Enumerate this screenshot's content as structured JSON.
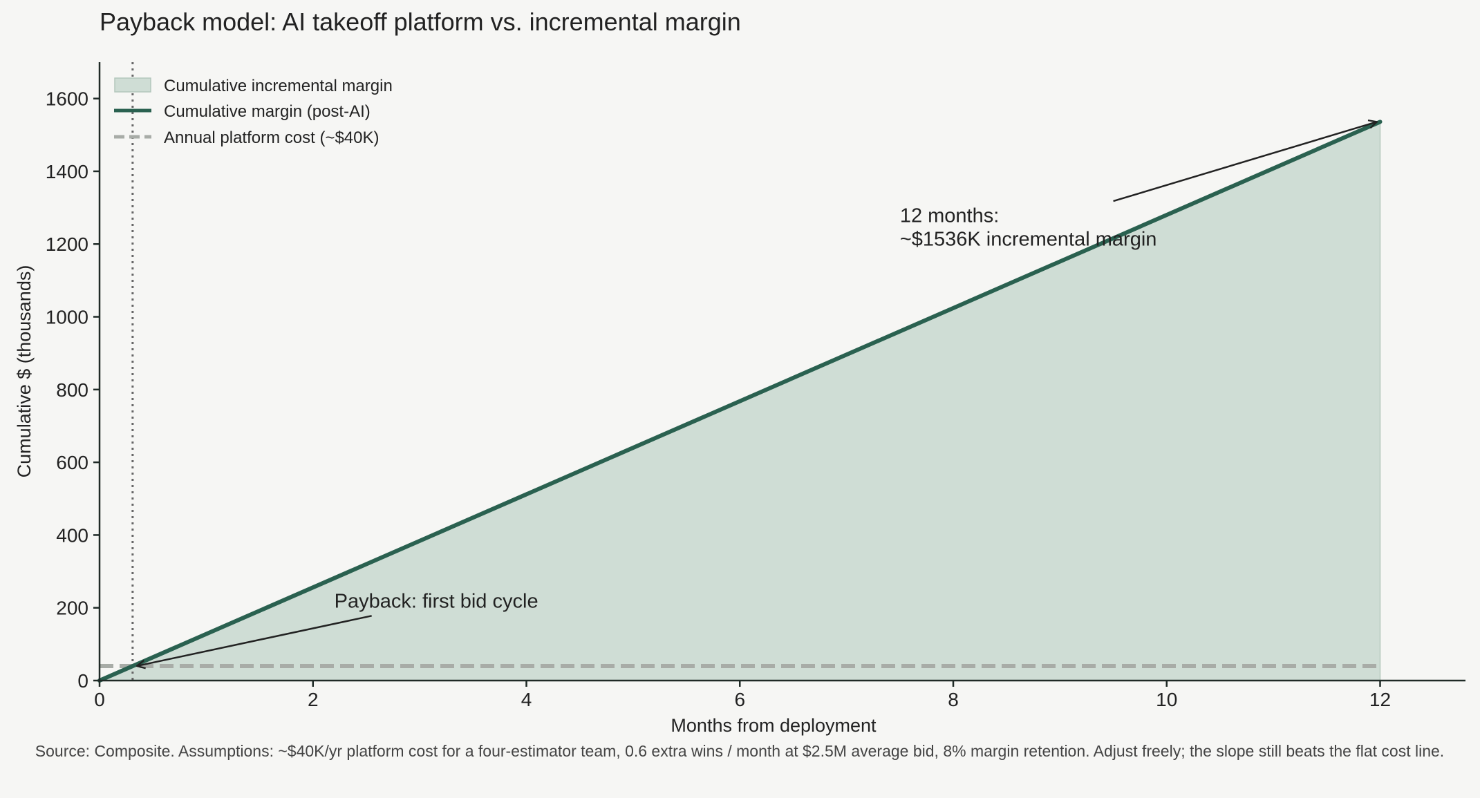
{
  "chart_data": {
    "type": "area",
    "title": "Payback model: AI takeoff platform vs. incremental margin",
    "xlabel": "Months from deployment",
    "ylabel": "Cumulative $ (thousands)",
    "xlim": [
      0,
      12.8
    ],
    "ylim": [
      0,
      1700
    ],
    "xticks": [
      0,
      2,
      4,
      6,
      8,
      10,
      12
    ],
    "yticks": [
      0,
      200,
      400,
      600,
      800,
      1000,
      1200,
      1400,
      1600
    ],
    "grid": false,
    "legend_position": "top-left",
    "series": [
      {
        "name": "Cumulative incremental margin",
        "kind": "area",
        "x": [
          0,
          12
        ],
        "y": [
          0,
          1536
        ],
        "color": "#cfddd5"
      },
      {
        "name": "Cumulative margin (post-AI)",
        "kind": "line",
        "x": [
          0,
          12
        ],
        "y": [
          0,
          1536
        ],
        "color": "#2a6150"
      },
      {
        "name": "Annual platform cost (~$40K)",
        "kind": "dashed-line",
        "x": [
          0,
          12
        ],
        "y": [
          40,
          40
        ],
        "color": "#a8aca7"
      }
    ],
    "payback_month": 0.31,
    "annotations": [
      {
        "id": "payback",
        "text": "Payback: first bid cycle",
        "text_at": [
          2.2,
          200
        ],
        "arrow_from": [
          2.55,
          178
        ],
        "arrow_to": [
          0.35,
          40
        ]
      },
      {
        "id": "twelve-months",
        "lines": [
          "12 months:",
          "~$1536K incremental margin"
        ],
        "text_at": [
          7.5,
          1260
        ],
        "arrow_from": [
          9.5,
          1318
        ],
        "arrow_to": [
          11.97,
          1536
        ]
      }
    ],
    "source": "Source: Composite. Assumptions: ~$40K/yr platform cost for a four-estimator team, 0.6 extra wins / month at $2.5M average bid, 8% margin retention. Adjust freely; the slope still beats the flat cost line."
  },
  "colors": {
    "background": "#f6f6f4",
    "axis": "#1f2a26",
    "payback_marker": "#666666",
    "annotation_arrow": "#222222"
  }
}
